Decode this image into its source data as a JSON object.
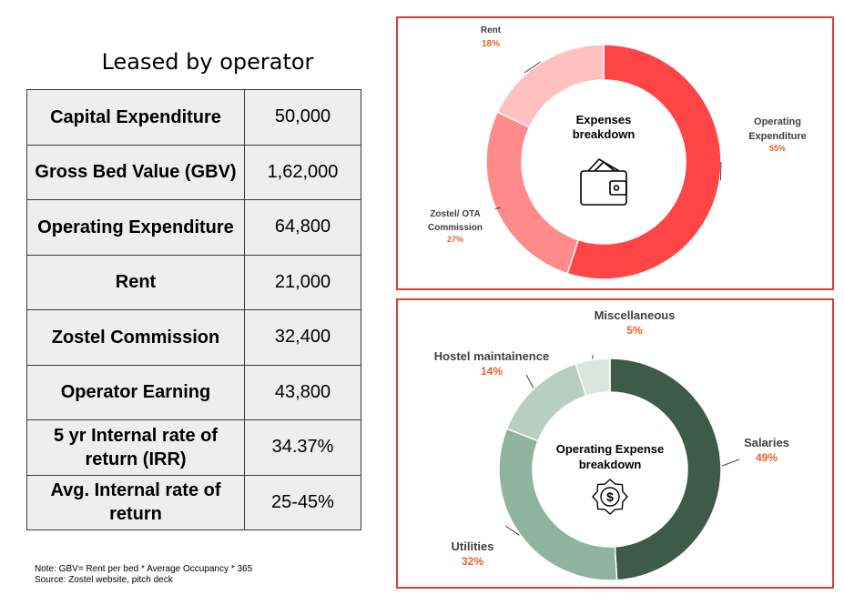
{
  "left": {
    "title": "Leased by operator",
    "rows": [
      {
        "label": "Capital Expenditure",
        "value": "50,000"
      },
      {
        "label": "Gross Bed Value (GBV)",
        "value": "1,62,000"
      },
      {
        "label": "Operating Expenditure",
        "value": "64,800"
      },
      {
        "label": "Rent",
        "value": "21,000"
      },
      {
        "label": "Zostel Commission",
        "value": "32,400"
      },
      {
        "label": "Operator Earning",
        "value": "43,800"
      },
      {
        "label": "5 yr Internal rate of return (IRR)",
        "value": "34.37%"
      },
      {
        "label": "Avg. Internal rate of return",
        "value": "25-45%"
      }
    ],
    "note1": "Note: GBV= Rent per bed * Average Occupancy * 365",
    "note2": "Source: Zostel website, pitch deck"
  },
  "chart_data": [
    {
      "type": "pie",
      "title": "Expenses breakdown",
      "center_title_lines": [
        "Expenses",
        "breakdown"
      ],
      "labels": [
        "Operating Expenditure",
        "Zostel/ OTA Commission",
        "Rent"
      ],
      "label_lines": [
        [
          "Operating",
          "Expenditure"
        ],
        [
          "Zostel/ OTA",
          "Commission"
        ],
        [
          "Rent"
        ]
      ],
      "values": [
        55,
        27,
        18
      ],
      "value_labels": [
        "55%",
        "27%",
        "18%"
      ],
      "colors": [
        "#ff4545",
        "#ff8a8a",
        "#ffc0c0"
      ],
      "center_icon": "wallet-icon"
    },
    {
      "type": "pie",
      "title": "Operating Expense breakdown",
      "center_title_lines": [
        "Operating Expense",
        "breakdown"
      ],
      "labels": [
        "Salaries",
        "Utilities",
        "Hostel maintainence",
        "Miscellaneous"
      ],
      "label_lines": [
        [
          "Salaries"
        ],
        [
          "Utilities"
        ],
        [
          "Hostel maintainence"
        ],
        [
          "Miscellaneous"
        ]
      ],
      "values": [
        49,
        32,
        14,
        5
      ],
      "value_labels": [
        "49%",
        "32%",
        "14%",
        "5%"
      ],
      "colors": [
        "#3d5a4b",
        "#8fb3a1",
        "#b7cec2",
        "#d9e5df"
      ],
      "center_icon": "gear-dollar-icon"
    }
  ],
  "colors": {
    "value_label": "#e8612c",
    "panel_border": "#e23b3b"
  }
}
